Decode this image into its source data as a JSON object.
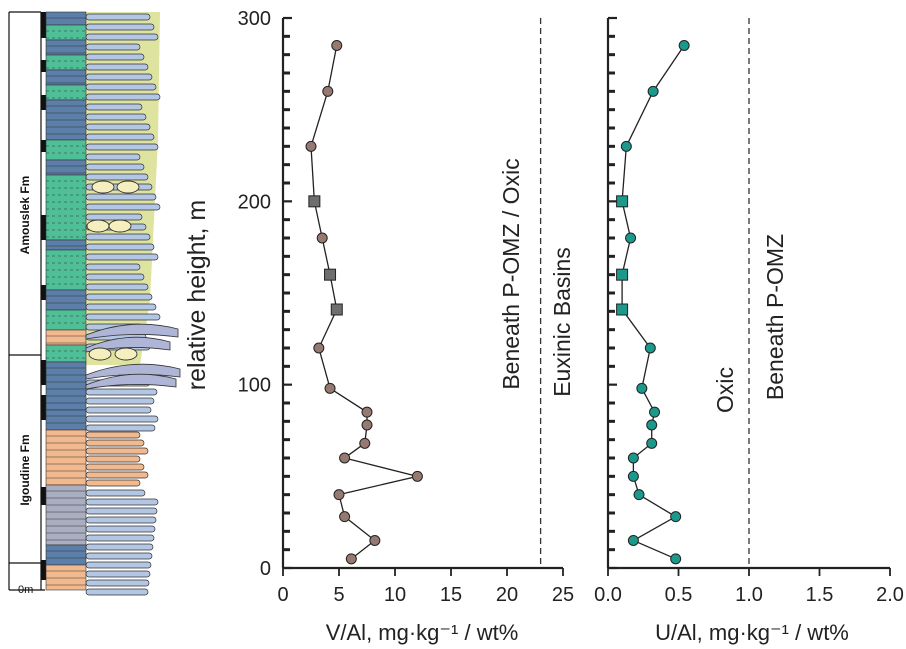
{
  "column": {
    "formations": [
      "Amouslek Fm",
      "Igoudine Fm"
    ],
    "base_label": "0m",
    "colors": {
      "green_shale": "#4fbf98",
      "blue_limestone": "#5b7fa8",
      "orange_dolomite": "#f3b98e",
      "gray_unit": "#a9aec0",
      "pale_yellow": "#dfe3a0",
      "bed_blue": "#b3c6e4",
      "mound_gray": "#aeb5d6"
    }
  },
  "shared_y": {
    "label": "relative height, m",
    "ylim": [
      0,
      300
    ],
    "ticks": [
      0,
      100,
      200,
      300
    ]
  },
  "chart_data": [
    {
      "type": "scatter",
      "xlabel": "V/Al, mg·kg⁻¹ / wt%",
      "xlim": [
        0,
        25
      ],
      "xticks": [
        0,
        5,
        10,
        15,
        20,
        25
      ],
      "ylim": [
        0,
        300
      ],
      "threshold": {
        "x": 23,
        "style": "dashed"
      },
      "zone_labels": [
        "Beneath P-OMZ / Oxic",
        "Euxinic Basins"
      ],
      "series": [
        {
          "marker": "circle",
          "color": "#967a72",
          "connected": true,
          "points": [
            {
              "x": 4.8,
              "y": 285,
              "marker": "circle"
            },
            {
              "x": 4.0,
              "y": 260,
              "marker": "circle"
            },
            {
              "x": 2.5,
              "y": 230,
              "marker": "circle"
            },
            {
              "x": 2.8,
              "y": 200,
              "marker": "square"
            },
            {
              "x": 3.5,
              "y": 180,
              "marker": "circle"
            },
            {
              "x": 4.2,
              "y": 160,
              "marker": "square"
            },
            {
              "x": 4.8,
              "y": 141,
              "marker": "square"
            },
            {
              "x": 3.2,
              "y": 120,
              "marker": "circle"
            },
            {
              "x": 4.2,
              "y": 98,
              "marker": "circle"
            },
            {
              "x": 7.5,
              "y": 85,
              "marker": "circle"
            },
            {
              "x": 7.5,
              "y": 78,
              "marker": "circle"
            },
            {
              "x": 7.3,
              "y": 68,
              "marker": "circle"
            },
            {
              "x": 5.5,
              "y": 60,
              "marker": "circle"
            },
            {
              "x": 12.0,
              "y": 50,
              "marker": "circle"
            },
            {
              "x": 5.0,
              "y": 40,
              "marker": "circle"
            },
            {
              "x": 5.5,
              "y": 28,
              "marker": "circle"
            },
            {
              "x": 8.2,
              "y": 15,
              "marker": "circle"
            },
            {
              "x": 6.1,
              "y": 5,
              "marker": "circle"
            }
          ]
        }
      ]
    },
    {
      "type": "scatter",
      "xlabel": "U/Al, mg·kg⁻¹ / wt%",
      "xlim": [
        0,
        2.0
      ],
      "xticks": [
        "0.0",
        "0.5",
        "1.0",
        "1.5",
        "2.0"
      ],
      "ylim": [
        0,
        300
      ],
      "threshold": {
        "x": 1.0,
        "style": "dashed"
      },
      "zone_labels": [
        "Oxic",
        "Beneath P-OMZ"
      ],
      "series": [
        {
          "marker": "circle",
          "color": "#1b998b",
          "connected": true,
          "points": [
            {
              "x": 0.54,
              "y": 285,
              "marker": "circle"
            },
            {
              "x": 0.32,
              "y": 260,
              "marker": "circle"
            },
            {
              "x": 0.13,
              "y": 230,
              "marker": "circle"
            },
            {
              "x": 0.1,
              "y": 200,
              "marker": "square"
            },
            {
              "x": 0.16,
              "y": 180,
              "marker": "circle"
            },
            {
              "x": 0.1,
              "y": 160,
              "marker": "square"
            },
            {
              "x": 0.1,
              "y": 141,
              "marker": "square"
            },
            {
              "x": 0.3,
              "y": 120,
              "marker": "circle"
            },
            {
              "x": 0.24,
              "y": 98,
              "marker": "circle"
            },
            {
              "x": 0.33,
              "y": 85,
              "marker": "circle"
            },
            {
              "x": 0.31,
              "y": 78,
              "marker": "circle"
            },
            {
              "x": 0.31,
              "y": 68,
              "marker": "circle"
            },
            {
              "x": 0.18,
              "y": 60,
              "marker": "circle"
            },
            {
              "x": 0.18,
              "y": 50,
              "marker": "circle"
            },
            {
              "x": 0.22,
              "y": 40,
              "marker": "circle"
            },
            {
              "x": 0.48,
              "y": 28,
              "marker": "circle"
            },
            {
              "x": 0.18,
              "y": 15,
              "marker": "circle"
            },
            {
              "x": 0.48,
              "y": 5,
              "marker": "circle"
            }
          ]
        }
      ]
    }
  ]
}
